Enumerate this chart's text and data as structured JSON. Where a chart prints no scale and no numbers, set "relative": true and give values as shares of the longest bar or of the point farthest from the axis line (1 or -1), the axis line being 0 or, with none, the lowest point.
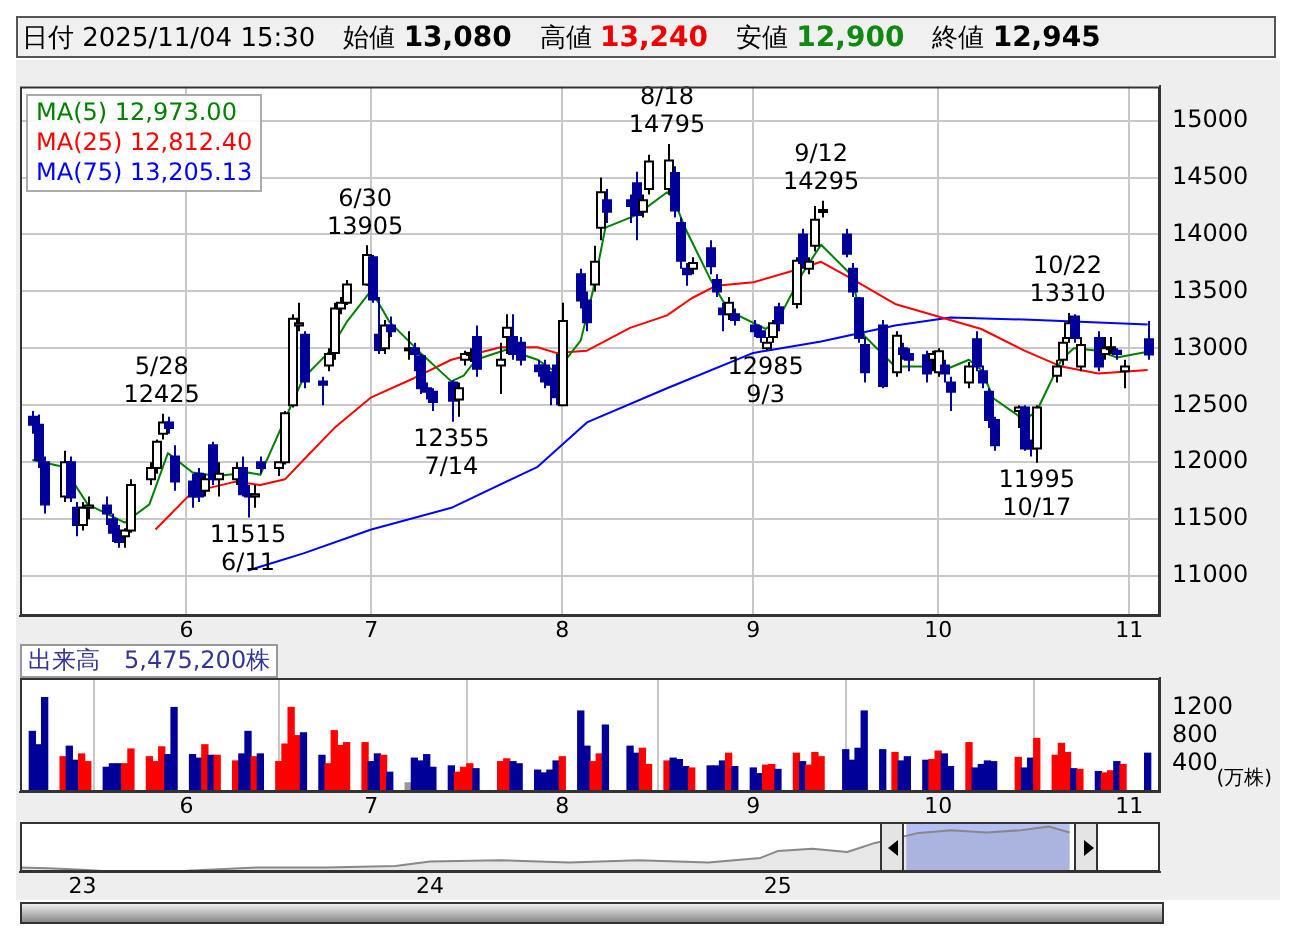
{
  "chart_data": [
    {
      "type": "candlestick",
      "colors": [
        "#000099",
        "#000099",
        "#000099",
        "#ffffff",
        "#000099",
        "#000099",
        "#ffffff",
        "#ffffff",
        "#000099",
        "#000099",
        "#000099",
        "#ffffff",
        "#ffffff",
        "#ffffff",
        "#ffffff",
        "#ffffff",
        "#000099",
        "#000099",
        "#000099",
        "#000099",
        "#ffffff",
        "#000099",
        "#ffffff",
        "#ffffff",
        "#000099",
        "#000099",
        "#ffffff",
        "#000099",
        "#ffffff",
        "#ffffff",
        "#ffffff",
        "#ffffff",
        "#000099",
        "#000099",
        "#ffffff",
        "#ffffff",
        "#ffffff",
        "#ffffff",
        "#ffffff",
        "#000099",
        "#000099",
        "#ffffff",
        "#000099",
        "#ffffff",
        "#000099",
        "#000099",
        "#000099",
        "#000099",
        "#000099",
        "#ffffff",
        "#ffffff",
        "#ffffff",
        "#000099",
        "#ffffff",
        "#ffffff",
        "#000099",
        "#000099",
        "#000099",
        "#000099",
        "#000099",
        "#000099",
        "#ffffff",
        "#000099",
        "#000099",
        "#ffffff",
        "#ffffff",
        "#000099",
        "#000099",
        "#000099",
        "#ffffff",
        "#ffffff",
        "#ffffff",
        "#000099",
        "#000099",
        "#000099",
        "#ffffff",
        "#000099",
        "#000099",
        "#000099",
        "#ffffff",
        "#000099",
        "#000099",
        "#000099",
        "#ffffff",
        "#ffffff",
        "#000099",
        "#ffffff",
        "#000099",
        "#ffffff",
        "#ffffff",
        "#ffffff",
        "#000099",
        "#000099",
        "#000099",
        "#000099",
        "#000099",
        "#ffffff",
        "#000099",
        "#000099",
        "#000099",
        "#ffffff",
        "#ffffff",
        "#000099",
        "#000099",
        "#ffffff",
        "#000099",
        "#000099",
        "#000099",
        "#000099",
        "#ffffff",
        "#000099",
        "#000099",
        "#ffffff",
        "#ffffff",
        "#ffffff",
        "#ffffff",
        "#000099",
        "#ffffff",
        "#000099",
        "#ffffff",
        "#ffffff",
        "#000099",
        "#ffffff",
        "#000099"
      ],
      "x": [
        "2025-05-07",
        "2025-05-08",
        "2025-05-09",
        "2025-05-12",
        "2025-05-13",
        "2025-05-14",
        "2025-05-15",
        "2025-05-16",
        "2025-05-19",
        "2025-05-20",
        "2025-05-21",
        "2025-05-22",
        "2025-05-23",
        "2025-05-26",
        "2025-05-27",
        "2025-05-28",
        "2025-05-29",
        "2025-05-30",
        "2025-06-02",
        "2025-06-03",
        "2025-06-04",
        "2025-06-05",
        "2025-06-06",
        "2025-06-09",
        "2025-06-10",
        "2025-06-11",
        "2025-06-12",
        "2025-06-13",
        "2025-06-16",
        "2025-06-17",
        "2025-06-18",
        "2025-06-19",
        "2025-06-20",
        "2025-06-23",
        "2025-06-24",
        "2025-06-25",
        "2025-06-26",
        "2025-06-27",
        "2025-06-30",
        "2025-07-01",
        "2025-07-02",
        "2025-07-03",
        "2025-07-04",
        "2025-07-07",
        "2025-07-08",
        "2025-07-09",
        "2025-07-10",
        "2025-07-11",
        "2025-07-14",
        "2025-07-15",
        "2025-07-16",
        "2025-07-17",
        "2025-07-18",
        "2025-07-22",
        "2025-07-23",
        "2025-07-24",
        "2025-07-25",
        "2025-07-28",
        "2025-07-29",
        "2025-07-30",
        "2025-07-31",
        "2025-08-01",
        "2025-08-04",
        "2025-08-05",
        "2025-08-06",
        "2025-08-07",
        "2025-08-08",
        "2025-08-12",
        "2025-08-13",
        "2025-08-14",
        "2025-08-15",
        "2025-08-18",
        "2025-08-19",
        "2025-08-20",
        "2025-08-21",
        "2025-08-22",
        "2025-08-25",
        "2025-08-26",
        "2025-08-27",
        "2025-08-28",
        "2025-08-29",
        "2025-09-01",
        "2025-09-02",
        "2025-09-03",
        "2025-09-04",
        "2025-09-05",
        "2025-09-08",
        "2025-09-09",
        "2025-09-10",
        "2025-09-11",
        "2025-09-12",
        "2025-09-16",
        "2025-09-17",
        "2025-09-18",
        "2025-09-19",
        "2025-09-22",
        "2025-09-24",
        "2025-09-25",
        "2025-09-26",
        "2025-09-29",
        "2025-09-30",
        "2025-10-01",
        "2025-10-02",
        "2025-10-03",
        "2025-10-06",
        "2025-10-07",
        "2025-10-08",
        "2025-10-09",
        "2025-10-10",
        "2025-10-14",
        "2025-10-15",
        "2025-10-16",
        "2025-10-17",
        "2025-10-20",
        "2025-10-21",
        "2025-10-22",
        "2025-10-23",
        "2025-10-24",
        "2025-10-27",
        "2025-10-28",
        "2025-10-29",
        "2025-10-30",
        "2025-10-31",
        "2025-11-04"
      ],
      "ohlc": [
        [
          12400,
          12450,
          12250,
          12330
        ],
        [
          12330,
          12420,
          11950,
          12020
        ],
        [
          12000,
          12050,
          11550,
          11630
        ],
        [
          11700,
          12100,
          11650,
          12000
        ],
        [
          12000,
          12050,
          11650,
          11690
        ],
        [
          11600,
          11650,
          11350,
          11450
        ],
        [
          11450,
          11650,
          11400,
          11600
        ],
        [
          11600,
          11700,
          11500,
          11620
        ],
        [
          11620,
          11700,
          11450,
          11550
        ],
        [
          11500,
          11550,
          11300,
          11380
        ],
        [
          11380,
          11450,
          11250,
          11300
        ],
        [
          11350,
          11420,
          11250,
          11400
        ],
        [
          11400,
          11850,
          11380,
          11800
        ],
        [
          11850,
          12000,
          11800,
          11950
        ],
        [
          11950,
          12200,
          11900,
          12180
        ],
        [
          12250,
          12425,
          12200,
          12350
        ],
        [
          12350,
          12400,
          12250,
          12300
        ],
        [
          12050,
          12150,
          11750,
          11830
        ],
        [
          11830,
          11900,
          11600,
          11700
        ],
        [
          11900,
          11950,
          11650,
          11700
        ],
        [
          11750,
          11900,
          11700,
          11850
        ],
        [
          12150,
          12180,
          11800,
          11850
        ],
        [
          11850,
          12000,
          11700,
          11900
        ],
        [
          11850,
          12000,
          11800,
          11950
        ],
        [
          11950,
          12050,
          11700,
          11720
        ],
        [
          11720,
          11800,
          11515,
          11700
        ],
        [
          11700,
          11800,
          11600,
          11720
        ],
        [
          12000,
          12050,
          11900,
          11950
        ],
        [
          11950,
          12000,
          11880,
          12000
        ],
        [
          12000,
          12450,
          11980,
          12430
        ],
        [
          12500,
          13300,
          12480,
          13260
        ],
        [
          13200,
          13400,
          13150,
          13220
        ],
        [
          13120,
          13150,
          12650,
          12710
        ],
        [
          12710,
          12750,
          12500,
          12680
        ],
        [
          12850,
          13000,
          12800,
          12950
        ],
        [
          12960,
          13400,
          12900,
          13350
        ],
        [
          13350,
          13450,
          13300,
          13400
        ],
        [
          13400,
          13600,
          13380,
          13560
        ],
        [
          13560,
          13905,
          13550,
          13820
        ],
        [
          13800,
          13820,
          13400,
          13430
        ],
        [
          13120,
          13450,
          12950,
          12985
        ],
        [
          13000,
          13250,
          12950,
          13200
        ],
        [
          13200,
          13280,
          13100,
          13150
        ],
        [
          13000,
          13150,
          12900,
          13000
        ],
        [
          13000,
          13050,
          12800,
          12950
        ],
        [
          12930,
          12950,
          12600,
          12650
        ],
        [
          12650,
          12700,
          12550,
          12620
        ],
        [
          12620,
          12650,
          12450,
          12530
        ],
        [
          12700,
          12720,
          12355,
          12540
        ],
        [
          12550,
          12700,
          12400,
          12650
        ],
        [
          12900,
          12980,
          12850,
          12950
        ],
        [
          12950,
          13000,
          12880,
          12960
        ],
        [
          13100,
          13200,
          12750,
          12820
        ],
        [
          12850,
          13050,
          12600,
          12900
        ],
        [
          13100,
          13300,
          12950,
          13180
        ],
        [
          13100,
          13300,
          12900,
          12950
        ],
        [
          13050,
          13100,
          12850,
          12900
        ],
        [
          12850,
          12900,
          12750,
          12800
        ],
        [
          12850,
          12900,
          12650,
          12710
        ],
        [
          12750,
          12800,
          12500,
          12680
        ],
        [
          12850,
          12950,
          12500,
          12570
        ],
        [
          12500,
          13400,
          12500,
          13240
        ],
        [
          13650,
          13700,
          13350,
          13420
        ],
        [
          13420,
          13500,
          13150,
          13230
        ],
        [
          13560,
          13900,
          13500,
          13760
        ],
        [
          14060,
          14500,
          13950,
          14370
        ],
        [
          14300,
          14400,
          14100,
          14200
        ],
        [
          14300,
          14350,
          14100,
          14250
        ],
        [
          14450,
          14550,
          13950,
          14170
        ],
        [
          14200,
          14350,
          14150,
          14300
        ],
        [
          14400,
          14700,
          14350,
          14640
        ],
        [
          14400,
          14795,
          14350,
          14650
        ],
        [
          14540,
          14600,
          14150,
          14210
        ],
        [
          14100,
          14150,
          13700,
          13770
        ],
        [
          13700,
          13750,
          13550,
          13650
        ],
        [
          13700,
          13800,
          13650,
          13750
        ],
        [
          13880,
          13950,
          13650,
          13720
        ],
        [
          13600,
          13650,
          13450,
          13500
        ],
        [
          13350,
          13400,
          13150,
          13300
        ],
        [
          13300,
          13450,
          13250,
          13400
        ],
        [
          13300,
          13350,
          13200,
          13250
        ],
        [
          13200,
          13250,
          13100,
          13150
        ],
        [
          13150,
          13200,
          13050,
          13100
        ],
        [
          13000,
          13100,
          12985,
          13050
        ],
        [
          13100,
          13250,
          13050,
          13220
        ],
        [
          13360,
          13400,
          13150,
          13220
        ],
        [
          13390,
          13800,
          13350,
          13770
        ],
        [
          14000,
          14050,
          13700,
          13750
        ],
        [
          13700,
          13800,
          13650,
          13760
        ],
        [
          13900,
          14250,
          13850,
          14130
        ],
        [
          14200,
          14295,
          14150,
          14215
        ],
        [
          14000,
          14050,
          13800,
          13830
        ],
        [
          13700,
          13750,
          13450,
          13500
        ],
        [
          13440,
          13450,
          13050,
          13090
        ],
        [
          13030,
          13100,
          12700,
          12790
        ],
        [
          13200,
          13250,
          12650,
          12670
        ],
        [
          12790,
          13150,
          12750,
          13110
        ],
        [
          13000,
          13050,
          12900,
          12950
        ],
        [
          12950,
          13000,
          12800,
          12900
        ],
        [
          12940,
          12980,
          12700,
          12780
        ],
        [
          12900,
          12980,
          12800,
          12950
        ],
        [
          12790,
          13000,
          12750,
          12975
        ],
        [
          12850,
          12900,
          12700,
          12780
        ],
        [
          12700,
          12750,
          12450,
          12620
        ],
        [
          12700,
          12880,
          12650,
          12840
        ],
        [
          13080,
          13150,
          12800,
          12840
        ],
        [
          12800,
          12850,
          12650,
          12700
        ],
        [
          12620,
          12650,
          12300,
          12370
        ],
        [
          12370,
          12400,
          12100,
          12150
        ],
        [
          12450,
          12500,
          12300,
          12480
        ],
        [
          12480,
          12500,
          12100,
          12120
        ],
        [
          12150,
          12200,
          12050,
          12120
        ],
        [
          12120,
          12500,
          11995,
          12480
        ],
        [
          12760,
          12900,
          12700,
          12840
        ],
        [
          12900,
          13100,
          12850,
          13050
        ],
        [
          13090,
          13310,
          13050,
          13220
        ],
        [
          13280,
          13300,
          13050,
          13090
        ],
        [
          12840,
          13100,
          12800,
          13030
        ],
        [
          13090,
          13150,
          12800,
          12840
        ],
        [
          12950,
          13100,
          12900,
          13000
        ],
        [
          13000,
          13100,
          12950,
          13010
        ],
        [
          12980,
          13000,
          12900,
          12950
        ],
        [
          12800,
          12900,
          12650,
          12840
        ],
        [
          13080,
          13240,
          12900,
          12945
        ]
      ],
      "series": [
        {
          "name": "MA(5) 12,973.00",
          "type": "line",
          "color": "#008000",
          "x": [
            "2025-05-07",
            "2025-05-12",
            "2025-05-16",
            "2025-05-22",
            "2025-05-26",
            "2025-05-29",
            "2025-06-02",
            "2025-06-06",
            "2025-06-11",
            "2025-06-13",
            "2025-06-18",
            "2025-06-20",
            "2025-06-24",
            "2025-06-27",
            "2025-07-01",
            "2025-07-04",
            "2025-07-09",
            "2025-07-14",
            "2025-07-16",
            "2025-07-18",
            "2025-07-23",
            "2025-07-28",
            "2025-07-31",
            "2025-08-04",
            "2025-08-06",
            "2025-08-08",
            "2025-08-13",
            "2025-08-18",
            "2025-08-19",
            "2025-08-21",
            "2025-08-25",
            "2025-08-28",
            "2025-09-03",
            "2025-09-05",
            "2025-09-09",
            "2025-09-12",
            "2025-09-17",
            "2025-09-19",
            "2025-09-24",
            "2025-09-29",
            "2025-10-02",
            "2025-10-06",
            "2025-10-08",
            "2025-10-10",
            "2025-10-15",
            "2025-10-17",
            "2025-10-21",
            "2025-10-23",
            "2025-10-27",
            "2025-10-30",
            "2025-11-04"
          ],
          "values": [
            12020,
            11960,
            11630,
            11470,
            11630,
            12080,
            11910,
            11880,
            11910,
            11890,
            12500,
            12740,
            12960,
            13230,
            13510,
            13230,
            12960,
            12710,
            12760,
            12900,
            12990,
            12900,
            12790,
            13070,
            13510,
            14060,
            14170,
            14370,
            14320,
            14050,
            13610,
            13330,
            13170,
            13250,
            13660,
            13910,
            13640,
            13110,
            12840,
            12840,
            12810,
            12900,
            12810,
            12560,
            12370,
            12450,
            12900,
            13000,
            12980,
            12920,
            12970
          ]
        },
        {
          "name": "MA(25) 12,812.40",
          "type": "line",
          "color": "#ff0000",
          "x": [
            "2025-05-27",
            "2025-06-02",
            "2025-06-09",
            "2025-06-13",
            "2025-06-17",
            "2025-06-20",
            "2025-06-25",
            "2025-07-01",
            "2025-07-08",
            "2025-07-14",
            "2025-07-22",
            "2025-07-28",
            "2025-07-31",
            "2025-08-05",
            "2025-08-12",
            "2025-08-18",
            "2025-08-22",
            "2025-08-26",
            "2025-09-01",
            "2025-09-08",
            "2025-09-12",
            "2025-09-17",
            "2025-09-24",
            "2025-10-01",
            "2025-10-08",
            "2025-10-15",
            "2025-10-21",
            "2025-10-27",
            "2025-11-04"
          ],
          "values": [
            11410,
            11740,
            11830,
            11800,
            11850,
            12020,
            12300,
            12570,
            12740,
            12900,
            13010,
            13010,
            12960,
            12980,
            13180,
            13290,
            13440,
            13550,
            13580,
            13690,
            13760,
            13610,
            13390,
            13280,
            13170,
            12980,
            12840,
            12780,
            12810
          ]
        },
        {
          "name": "MA(75) 13,205.13",
          "type": "line",
          "color": "#0000ff",
          "x": [
            "2025-06-11",
            "2025-06-20",
            "2025-07-01",
            "2025-07-14",
            "2025-07-28",
            "2025-08-05",
            "2025-08-18",
            "2025-09-01",
            "2025-09-12",
            "2025-09-24",
            "2025-10-03",
            "2025-10-17",
            "2025-11-04"
          ],
          "values": [
            11050,
            11200,
            11410,
            11600,
            11960,
            12350,
            12650,
            12960,
            13060,
            13200,
            13270,
            13250,
            13210
          ]
        }
      ],
      "xlim": [
        "2025-05-05",
        "2025-11-06"
      ],
      "xticks": [
        {
          "value": "2025-06-01",
          "label": "6"
        },
        {
          "value": "2025-07-01",
          "label": "7"
        },
        {
          "value": "2025-08-01",
          "label": "8"
        },
        {
          "value": "2025-09-01",
          "label": "9"
        },
        {
          "value": "2025-10-01",
          "label": "10"
        },
        {
          "value": "2025-11-01",
          "label": "11"
        }
      ],
      "ylim": [
        10650,
        15300
      ],
      "yticks": [
        11000,
        11500,
        12000,
        12500,
        13000,
        13500,
        14000,
        14500,
        15000
      ],
      "grid": true,
      "legend": "top left",
      "annotations": [
        "日付 2025/11/04 15:30",
        "始値 13,080",
        "高値 13,240",
        "安値 12,900",
        "終値 12,945",
        {
          "text": "5/28\n12425",
          "x": "2025-05-28",
          "y": 12425
        },
        {
          "text": "11515\n6/11",
          "x": "2025-06-11",
          "y": 11515
        },
        {
          "text": "6/30\n13905",
          "x": "2025-06-30",
          "y": 13905
        },
        {
          "text": "12355\n7/14",
          "x": "2025-07-14",
          "y": 12355
        },
        {
          "text": "8/18\n14795",
          "x": "2025-08-18",
          "y": 14795
        },
        {
          "text": "12985\n9/3",
          "x": "2025-09-03",
          "y": 12985
        },
        {
          "text": "9/12\n14295",
          "x": "2025-09-12",
          "y": 14295
        },
        {
          "text": "11995\n10/17",
          "x": "2025-10-17",
          "y": 11995
        },
        {
          "text": "10/22\n13310",
          "x": "2025-10-22",
          "y": 13310
        }
      ]
    },
    {
      "type": "bar",
      "title": "出来高　5,475,200株",
      "ylabel": "(万株)",
      "x": [
        "2025-05-07",
        "2025-05-08",
        "2025-05-09",
        "2025-05-12",
        "2025-05-13",
        "2025-05-14",
        "2025-05-15",
        "2025-05-16",
        "2025-05-19",
        "2025-05-20",
        "2025-05-21",
        "2025-05-22",
        "2025-05-23",
        "2025-05-26",
        "2025-05-27",
        "2025-05-28",
        "2025-05-29",
        "2025-05-30",
        "2025-06-02",
        "2025-06-03",
        "2025-06-04",
        "2025-06-05",
        "2025-06-06",
        "2025-06-09",
        "2025-06-10",
        "2025-06-11",
        "2025-06-12",
        "2025-06-13",
        "2025-06-16",
        "2025-06-17",
        "2025-06-18",
        "2025-06-19",
        "2025-06-20",
        "2025-06-23",
        "2025-06-24",
        "2025-06-25",
        "2025-06-26",
        "2025-06-27",
        "2025-06-30",
        "2025-07-01",
        "2025-07-02",
        "2025-07-03",
        "2025-07-04",
        "2025-07-07",
        "2025-07-08",
        "2025-07-09",
        "2025-07-10",
        "2025-07-11",
        "2025-07-14",
        "2025-07-15",
        "2025-07-16",
        "2025-07-17",
        "2025-07-18",
        "2025-07-22",
        "2025-07-23",
        "2025-07-24",
        "2025-07-25",
        "2025-07-28",
        "2025-07-29",
        "2025-07-30",
        "2025-07-31",
        "2025-08-01",
        "2025-08-04",
        "2025-08-05",
        "2025-08-06",
        "2025-08-07",
        "2025-08-08",
        "2025-08-12",
        "2025-08-13",
        "2025-08-14",
        "2025-08-15",
        "2025-08-18",
        "2025-08-19",
        "2025-08-20",
        "2025-08-21",
        "2025-08-22",
        "2025-08-25",
        "2025-08-26",
        "2025-08-27",
        "2025-08-28",
        "2025-08-29",
        "2025-09-01",
        "2025-09-02",
        "2025-09-03",
        "2025-09-04",
        "2025-09-05",
        "2025-09-08",
        "2025-09-09",
        "2025-09-10",
        "2025-09-11",
        "2025-09-12",
        "2025-09-16",
        "2025-09-17",
        "2025-09-18",
        "2025-09-19",
        "2025-09-22",
        "2025-09-24",
        "2025-09-25",
        "2025-09-26",
        "2025-09-29",
        "2025-09-30",
        "2025-10-01",
        "2025-10-02",
        "2025-10-03",
        "2025-10-06",
        "2025-10-07",
        "2025-10-08",
        "2025-10-09",
        "2025-10-10",
        "2025-10-14",
        "2025-10-15",
        "2025-10-16",
        "2025-10-17",
        "2025-10-20",
        "2025-10-21",
        "2025-10-22",
        "2025-10-23",
        "2025-10-24",
        "2025-10-27",
        "2025-10-28",
        "2025-10-29",
        "2025-10-30",
        "2025-10-31",
        "2025-11-04"
      ],
      "values": [
        860,
        670,
        1340,
        500,
        650,
        450,
        540,
        430,
        350,
        400,
        400,
        400,
        610,
        500,
        430,
        640,
        530,
        1200,
        530,
        480,
        670,
        520,
        520,
        440,
        540,
        860,
        500,
        540,
        430,
        680,
        1200,
        800,
        840,
        520,
        400,
        870,
        660,
        700,
        700,
        430,
        540,
        520,
        280,
        130,
        480,
        440,
        530,
        350,
        370,
        280,
        350,
        400,
        330,
        430,
        470,
        430,
        400,
        310,
        270,
        310,
        440,
        500,
        1150,
        650,
        430,
        540,
        950,
        650,
        550,
        620,
        390,
        440,
        480,
        460,
        360,
        340,
        370,
        370,
        440,
        550,
        360,
        340,
        260,
        380,
        390,
        320,
        550,
        430,
        380,
        560,
        500,
        600,
        450,
        620,
        1150,
        600,
        560,
        440,
        500,
        450,
        460,
        580,
        540,
        360,
        700,
        340,
        390,
        440,
        430,
        490,
        340,
        480,
        760,
        520,
        690,
        560,
        330,
        320,
        290,
        270,
        300,
        430,
        390,
        550
      ],
      "colors": [
        "#000099",
        "#000099",
        "#000099",
        "#ff0000",
        "#000099",
        "#000099",
        "#ff0000",
        "#ff0000",
        "#000099",
        "#000099",
        "#000099",
        "#ff0000",
        "#ff0000",
        "#ff0000",
        "#ff0000",
        "#ff0000",
        "#000099",
        "#000099",
        "#000099",
        "#000099",
        "#ff0000",
        "#000099",
        "#ff0000",
        "#ff0000",
        "#000099",
        "#000099",
        "#ff0000",
        "#000099",
        "#ff0000",
        "#ff0000",
        "#ff0000",
        "#ff0000",
        "#000099",
        "#000099",
        "#ff0000",
        "#ff0000",
        "#ff0000",
        "#ff0000",
        "#ff0000",
        "#000099",
        "#000099",
        "#ff0000",
        "#000099",
        "#999999",
        "#000099",
        "#000099",
        "#000099",
        "#000099",
        "#000099",
        "#ff0000",
        "#ff0000",
        "#ff0000",
        "#000099",
        "#ff0000",
        "#ff0000",
        "#000099",
        "#000099",
        "#000099",
        "#000099",
        "#000099",
        "#000099",
        "#ff0000",
        "#000099",
        "#000099",
        "#ff0000",
        "#ff0000",
        "#000099",
        "#000099",
        "#000099",
        "#ff0000",
        "#ff0000",
        "#ff0000",
        "#000099",
        "#000099",
        "#000099",
        "#ff0000",
        "#000099",
        "#000099",
        "#000099",
        "#ff0000",
        "#000099",
        "#000099",
        "#000099",
        "#ff0000",
        "#ff0000",
        "#000099",
        "#ff0000",
        "#000099",
        "#ff0000",
        "#ff0000",
        "#ff0000",
        "#000099",
        "#000099",
        "#000099",
        "#000099",
        "#000099",
        "#ff0000",
        "#000099",
        "#000099",
        "#000099",
        "#ff0000",
        "#ff0000",
        "#000099",
        "#000099",
        "#ff0000",
        "#000099",
        "#000099",
        "#000099",
        "#000099",
        "#ff0000",
        "#000099",
        "#000099",
        "#ff0000",
        "#ff0000",
        "#ff0000",
        "#ff0000",
        "#000099",
        "#ff0000",
        "#000099",
        "#ff0000",
        "#ff0000",
        "#000099",
        "#ff0000",
        "#000099"
      ],
      "xlim": [
        "2025-05-05",
        "2025-11-06"
      ],
      "xticks": [
        {
          "value": "2025-06-01",
          "label": "6"
        },
        {
          "value": "2025-07-01",
          "label": "7"
        },
        {
          "value": "2025-08-01",
          "label": "8"
        },
        {
          "value": "2025-09-01",
          "label": "9"
        },
        {
          "value": "2025-10-01",
          "label": "10"
        },
        {
          "value": "2025-11-01",
          "label": "11"
        }
      ],
      "ylim": [
        0,
        1620
      ],
      "yticks": [
        400,
        800,
        1200
      ],
      "grid": "x"
    },
    {
      "type": "area",
      "relative": true,
      "color": "#888888",
      "x": [
        2022.82,
        2022.9,
        2023.0,
        2023.1,
        2023.3,
        2023.5,
        2023.7,
        2023.9,
        2024.0,
        2024.2,
        2024.4,
        2024.6,
        2024.8,
        2024.95,
        2025.0,
        2025.1,
        2025.2,
        2025.28,
        2025.4,
        2025.5,
        2025.6,
        2025.7,
        2025.78,
        2025.84
      ],
      "values": [
        0.1,
        0.08,
        0.05,
        0,
        0.03,
        0.1,
        0.1,
        0.13,
        0.23,
        0.26,
        0.21,
        0.26,
        0.21,
        0.31,
        0.46,
        0.51,
        0.44,
        0.64,
        0.85,
        0.92,
        0.87,
        0.92,
        1,
        0.87
      ],
      "xlim": [
        2022.82,
        2026.1
      ],
      "xticks": [
        {
          "value": 2023,
          "label": "23"
        },
        {
          "value": 2024,
          "label": "24"
        },
        {
          "value": 2025,
          "label": "25"
        }
      ],
      "tick_labels": "x",
      "bands": [
        {
          "axis": "x",
          "from": 2025.37,
          "to": 2025.84,
          "color": "#b4c0f4"
        }
      ]
    }
  ]
}
